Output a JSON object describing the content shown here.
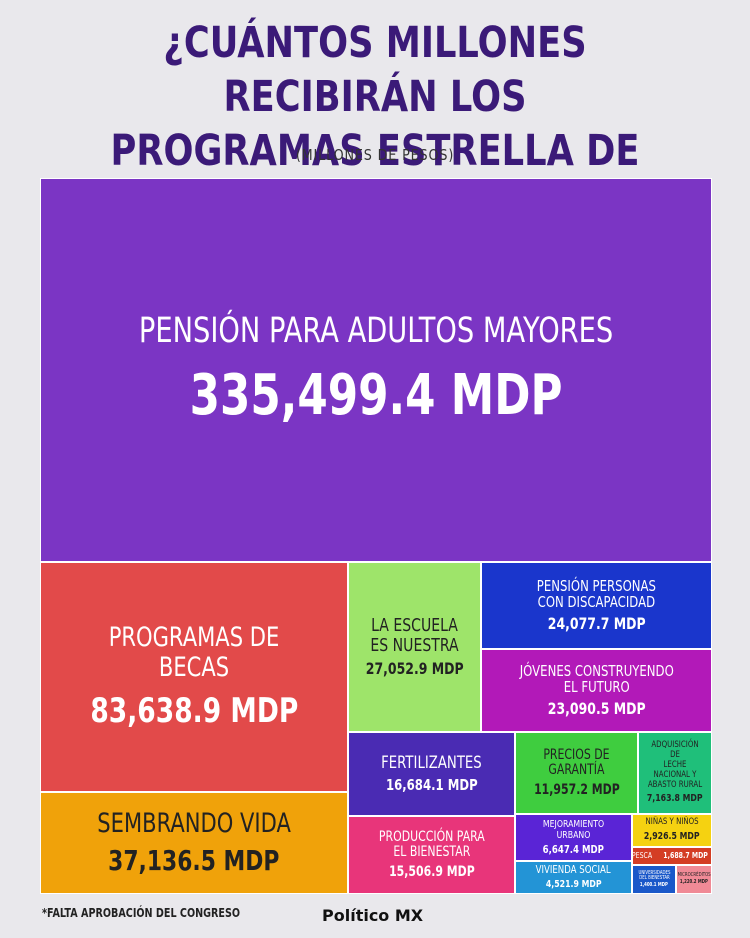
{
  "header": {
    "title_line1": "¿CUÁNTOS MILLONES RECIBIRÁN LOS",
    "title_line2": "PROGRAMAS ESTRELLA DE AMLO?",
    "subtitle": "(MILLONES DE PESOS)"
  },
  "footer": {
    "footnote": "*FALTA APROBACIÓN DEL CONGRESO",
    "brand": "Político MX"
  },
  "chart_data": {
    "type": "treemap",
    "unit": "MDP",
    "items": [
      {
        "id": "adultos",
        "label": "Pensión para adultos mayores",
        "value": 335499.4,
        "value_text": "335,499.4 MDP",
        "color": "#7b35c4"
      },
      {
        "id": "becas",
        "label": "Programas de becas",
        "value": 83638.9,
        "value_text": "83,638.9 MDP",
        "color": "#e24a4a"
      },
      {
        "id": "sembrando",
        "label": "Sembrando vida",
        "value": 37136.5,
        "value_text": "37,136.5 MDP",
        "color": "#f0a20a"
      },
      {
        "id": "escuela",
        "label": "La escuela\nes nuestra",
        "value": 27052.9,
        "value_text": "27,052.9 MDP",
        "color": "#9ee46a"
      },
      {
        "id": "discapacidad",
        "label": "Pensión personas\ncon discapacidad",
        "value": 24077.7,
        "value_text": "24,077.7 MDP",
        "color": "#1a36cc"
      },
      {
        "id": "jovenes",
        "label": "Jóvenes construyendo\nel futuro",
        "value": 23090.5,
        "value_text": "23,090.5 MDP",
        "color": "#b219b8"
      },
      {
        "id": "fertilizantes",
        "label": "Fertilizantes",
        "value": 16684.1,
        "value_text": "16,684.1 MDP",
        "color": "#4a2bb3"
      },
      {
        "id": "produccion",
        "label": "Producción para\nel bienestar",
        "value": 15506.9,
        "value_text": "15,506.9 MDP",
        "color": "#e8357a"
      },
      {
        "id": "precios",
        "label": "Precios de\ngarantía",
        "value": 11957.2,
        "value_text": "11,957.2 MDP",
        "color": "#3fcd3f"
      },
      {
        "id": "leche",
        "label": "Adquisición de\nleche nacional y\nabasto rural",
        "value": 7163.8,
        "value_text": "7,163.8 MDP",
        "color": "#1fbf7a"
      },
      {
        "id": "urbano",
        "label": "Mejoramiento urbano",
        "value": 6647.4,
        "value_text": "6,647.4 MDP",
        "color": "#5a24d6"
      },
      {
        "id": "vivienda",
        "label": "Vivienda social",
        "value": 4521.9,
        "value_text": "4,521.9 MDP",
        "color": "#2394d6"
      },
      {
        "id": "ninas",
        "label": "Niñas y niños",
        "value": 2926.5,
        "value_text": "2,926.5 MDP",
        "color": "#f5d211"
      },
      {
        "id": "pesca",
        "label": "Pesca",
        "value": 1688.7,
        "value_text": "1,688.7 MDP",
        "color": "#d43d24"
      },
      {
        "id": "universidades",
        "label": "Universidades\ndel bienestar",
        "value": 1400.1,
        "value_text": "1,400.1 MDP",
        "color": "#1a58c9"
      },
      {
        "id": "microcreditos",
        "label": "Microcréditos",
        "value": 1220.2,
        "value_text": "1,220.2 MDP",
        "color": "#f08a96"
      }
    ]
  }
}
